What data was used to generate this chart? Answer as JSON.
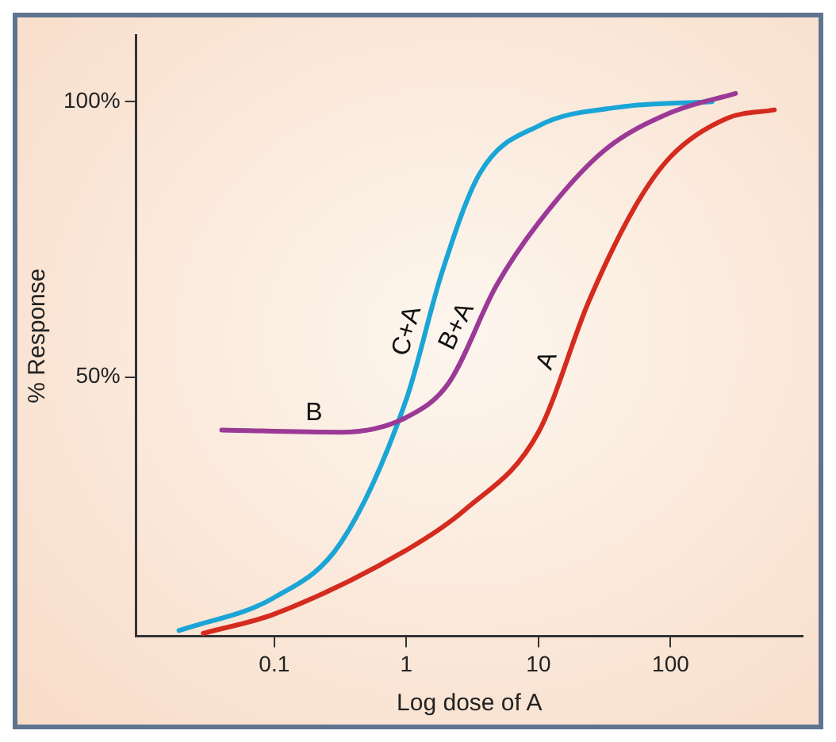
{
  "chart_data": {
    "type": "line",
    "xlabel": "Log dose of A",
    "ylabel": "% Response",
    "log": "x",
    "grid": false,
    "legend": false,
    "marker": "none",
    "line_style": "solid",
    "xlim": [
      0.009,
      1000
    ],
    "xticks": [
      0.1,
      1,
      10,
      100
    ],
    "ylim": [
      3,
      112
    ],
    "yticks": [
      {
        "value": 50,
        "label": "50%"
      },
      {
        "value": 100,
        "label": "100%"
      }
    ],
    "series": [
      {
        "name": "A",
        "color": "#d42b1e",
        "x": [
          0.029,
          0.1,
          1,
          2.8,
          10,
          24,
          54,
          100,
          270,
          610
        ],
        "values": [
          3.5,
          7,
          18.6,
          26,
          40,
          63.7,
          81,
          90,
          97,
          98.5
        ]
      },
      {
        "name": "B+A",
        "color": "#9b3a96",
        "x": [
          0.04,
          0.32,
          1,
          2.1,
          4.8,
          10,
          31,
          100,
          310
        ],
        "values": [
          40.4,
          40,
          42.7,
          49,
          66.6,
          78,
          91,
          98,
          101.5
        ]
      },
      {
        "name": "C+A",
        "color": "#1aa5d6",
        "x": [
          0.019,
          0.1,
          0.32,
          1,
          1.86,
          3.6,
          10,
          41,
          206
        ],
        "values": [
          4,
          10,
          20,
          46,
          69,
          87,
          95.6,
          99,
          100
        ]
      }
    ],
    "annotations": [
      {
        "text": "B",
        "x": 0.2,
        "y": 40
      }
    ]
  }
}
